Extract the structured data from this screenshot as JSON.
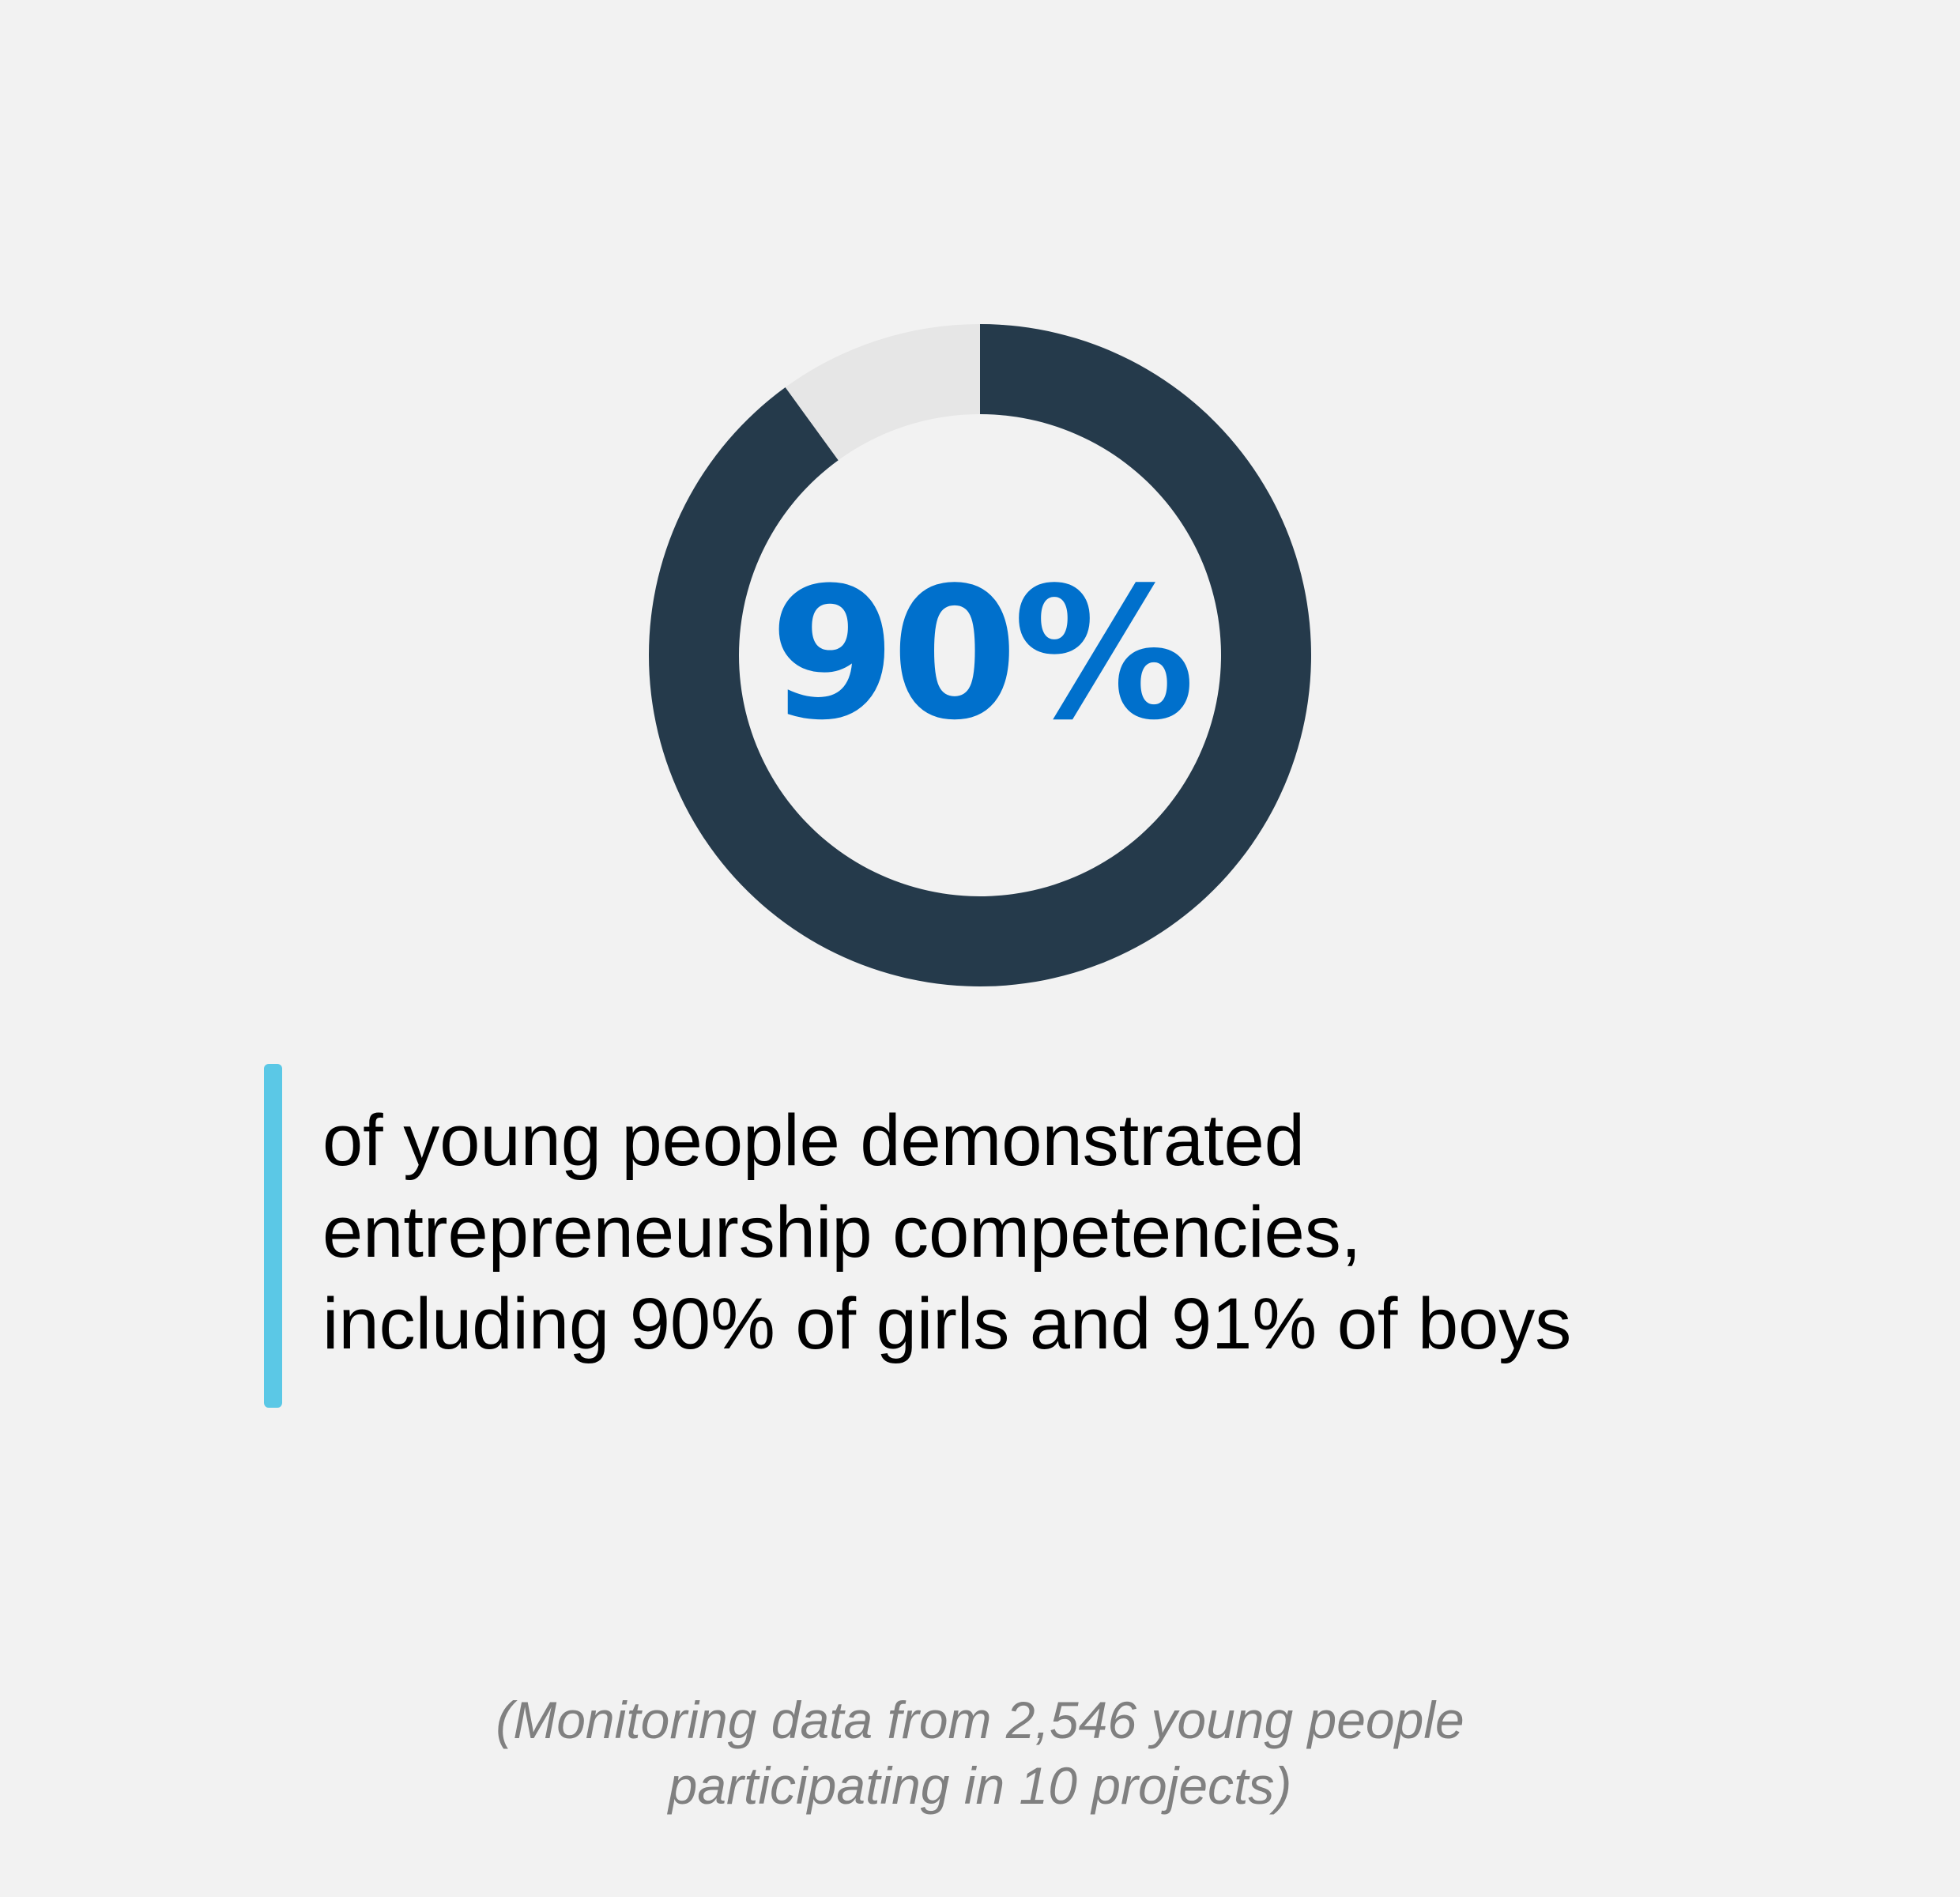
{
  "chart_data": {
    "type": "pie",
    "variant": "donut",
    "value": 90,
    "unit": "%",
    "center_label": "90%",
    "colors": {
      "filled": "#253a4b",
      "remainder": "#e6e6e6",
      "label": "#0070cc",
      "accent_bar": "#5bc8e6"
    }
  },
  "description_lines": [
    "of young people demonstrated",
    "entrepreneurship competencies,",
    "including 90% of girls and 91% of boys"
  ],
  "footnote_lines": [
    "(Monitoring data from 2,546 young people",
    "participating in 10 projects)"
  ]
}
